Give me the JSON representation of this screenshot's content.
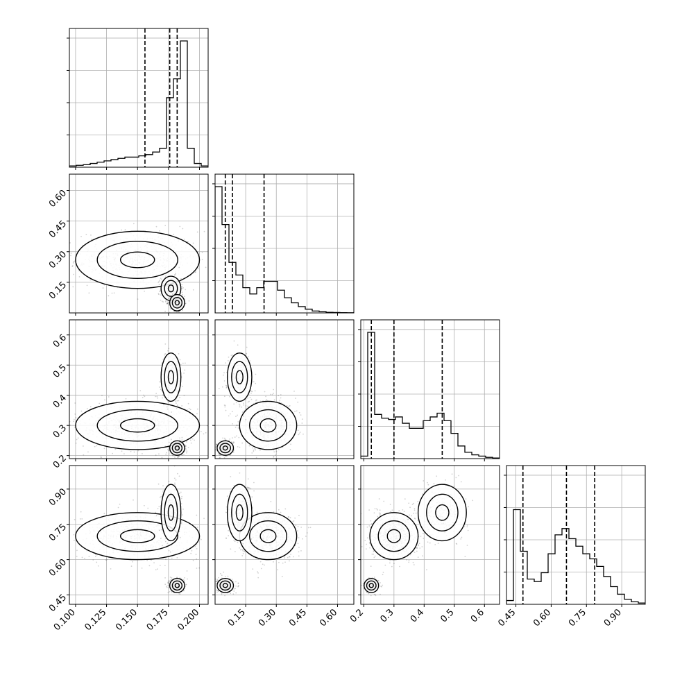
{
  "chart_data": {
    "type": "scatter",
    "title": "",
    "grid": true,
    "legend": "none",
    "colors": {
      "frame": "#000000",
      "grid": "#b0b0b0",
      "points": "#000000",
      "background": "#ffffff"
    },
    "parameters": [
      {
        "range": [
          0.095,
          0.207
        ],
        "ticks": [
          0.1,
          0.125,
          0.15,
          0.175,
          0.2
        ],
        "tick_labels": [
          "0.100",
          "0.125",
          "0.150",
          "0.175",
          "0.200"
        ]
      },
      {
        "range": [
          0.0,
          0.68
        ],
        "ticks": [
          0.15,
          0.3,
          0.45,
          0.6
        ],
        "tick_labels": [
          "0.15",
          "0.30",
          "0.45",
          "0.60"
        ]
      },
      {
        "range": [
          0.19,
          0.65
        ],
        "ticks": [
          0.2,
          0.3,
          0.4,
          0.5,
          0.6
        ],
        "tick_labels": [
          "0.2",
          "0.3",
          "0.4",
          "0.5",
          "0.6"
        ]
      },
      {
        "range": [
          0.41,
          1.0
        ],
        "ticks": [
          0.45,
          0.6,
          0.75,
          0.9
        ],
        "tick_labels": [
          "0.45",
          "0.60",
          "0.75",
          "0.90"
        ]
      }
    ],
    "quantiles": [
      [
        0.156,
        0.176,
        0.182
      ],
      [
        0.05,
        0.085,
        0.24
      ],
      [
        0.225,
        0.3,
        0.46
      ],
      [
        0.48,
        0.665,
        0.785
      ]
    ],
    "histograms": [
      {
        "density": [
          0.01,
          0.015,
          0.02,
          0.03,
          0.04,
          0.05,
          0.06,
          0.07,
          0.08,
          0.08,
          0.09,
          0.1,
          0.12,
          0.15,
          0.55,
          0.7,
          1.0,
          0.15,
          0.03,
          0.01
        ]
      },
      {
        "density": [
          1.0,
          0.7,
          0.4,
          0.3,
          0.2,
          0.15,
          0.2,
          0.25,
          0.25,
          0.18,
          0.12,
          0.08,
          0.05,
          0.03,
          0.015,
          0.01,
          0.005,
          0.003,
          0.002,
          0.001
        ]
      },
      {
        "density": [
          0.02,
          1.0,
          0.35,
          0.32,
          0.31,
          0.33,
          0.28,
          0.24,
          0.24,
          0.3,
          0.33,
          0.36,
          0.3,
          0.2,
          0.1,
          0.05,
          0.03,
          0.02,
          0.01,
          0.005
        ]
      },
      {
        "density": [
          0.03,
          0.75,
          0.42,
          0.2,
          0.18,
          0.25,
          0.4,
          0.55,
          0.6,
          0.52,
          0.46,
          0.4,
          0.36,
          0.3,
          0.22,
          0.14,
          0.08,
          0.04,
          0.02,
          0.01
        ]
      }
    ],
    "clusters": [
      {
        "weight": 0.45,
        "mean": [
          0.15,
          0.26,
          0.3,
          0.7
        ],
        "sd": [
          0.025,
          0.07,
          0.04,
          0.05
        ]
      },
      {
        "weight": 0.22,
        "mean": [
          0.177,
          0.12,
          0.46,
          0.8
        ],
        "sd": [
          0.004,
          0.03,
          0.04,
          0.06
        ]
      },
      {
        "weight": 0.25,
        "mean": [
          0.182,
          0.05,
          0.225,
          0.49
        ],
        "sd": [
          0.003,
          0.02,
          0.012,
          0.015
        ]
      }
    ]
  }
}
